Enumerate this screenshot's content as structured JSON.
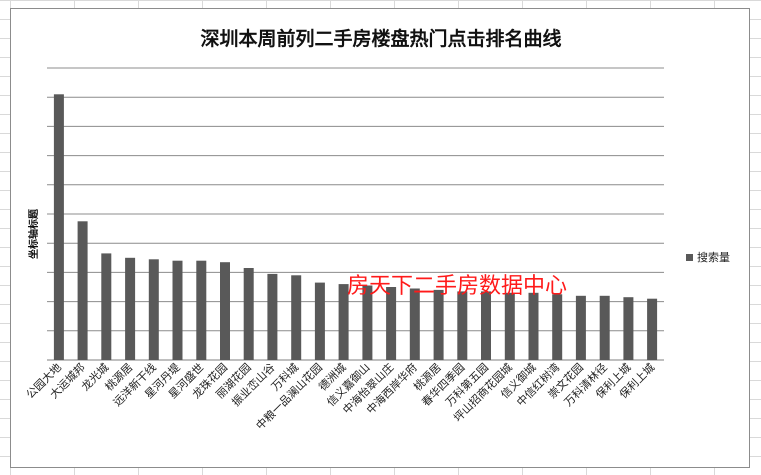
{
  "chart_data": {
    "type": "bar",
    "title": "深圳本周前列二手房楼盘热门点击排名曲线",
    "ylabel": "坐标轴标题",
    "xlabel": "",
    "legend_position": "right",
    "grid": true,
    "ylim": [
      0,
      10
    ],
    "series": [
      {
        "name": "搜索量",
        "color": "#595959",
        "values": [
          9.1,
          4.75,
          3.65,
          3.5,
          3.45,
          3.4,
          3.4,
          3.35,
          3.15,
          2.95,
          2.9,
          2.65,
          2.6,
          2.55,
          2.5,
          2.45,
          2.4,
          2.35,
          2.35,
          2.3,
          2.3,
          2.25,
          2.2,
          2.2,
          2.15,
          2.1
        ]
      }
    ],
    "categories": [
      "公园大地",
      "大运城邦",
      "龙光城",
      "桃源居",
      "远洋新干线",
      "星河丹堤",
      "星河盛世",
      "龙珠花园",
      "丽湖花园",
      "振业峦山谷",
      "万科城",
      "中粮一品澜山花园",
      "德洲城",
      "信义嘉御山",
      "中海怡翠山庄",
      "中海西岸华府",
      "桃源居",
      "春华四季园",
      "万科第五园",
      "坪山招商花园城",
      "信义御城",
      "中信红树湾",
      "崇文花园",
      "万科清林径",
      "保利上城",
      "保利上城"
    ]
  },
  "watermark": "房天下二手房数据中心"
}
